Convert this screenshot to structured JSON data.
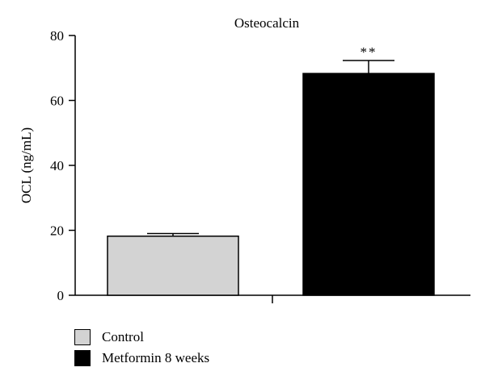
{
  "chart_data": {
    "type": "bar",
    "title": "Osteocalcin",
    "xlabel": "",
    "ylabel": "OCL (ng/mL)",
    "ylim": [
      0,
      80
    ],
    "yticks": [
      0,
      20,
      40,
      60,
      80
    ],
    "grid": false,
    "legend_position": "bottom-left",
    "series": [
      {
        "name": "Control",
        "value": 18.2,
        "error": 0.8,
        "color": "#d3d3d3",
        "annotation": ""
      },
      {
        "name": "Metformin 8 weeks",
        "value": 68.3,
        "error": 4.0,
        "color": "#000000",
        "annotation": "**"
      }
    ]
  }
}
